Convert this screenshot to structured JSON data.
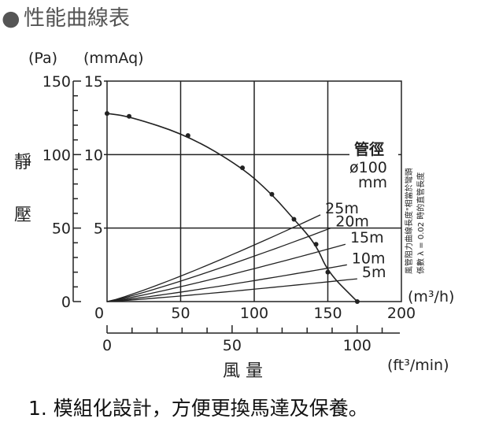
{
  "header": {
    "bullet": "●",
    "title": "性能曲線表"
  },
  "chart_data": {
    "type": "line",
    "y_unit_left": "(Pa)",
    "y_unit_right": "(mmAq)",
    "ylabel_chars": [
      "靜",
      "壓"
    ],
    "xlabel": "風 量",
    "x_unit_top": "(m³/h)",
    "x_unit_bottom": "(ft³/min)",
    "ylim_pa": [
      0,
      150
    ],
    "ylim_mmaq": [
      0,
      15
    ],
    "xlim_m3h": [
      0,
      200
    ],
    "xlim_cfm": [
      0,
      100
    ],
    "y_ticks_pa": [
      "0",
      "50",
      "100",
      "150"
    ],
    "y_ticks_mmaq": [
      "5",
      "10",
      "15"
    ],
    "x_ticks_m3h": [
      "0",
      "50",
      "100",
      "150",
      "200"
    ],
    "x_ticks_cfm": [
      "0",
      "50",
      "100"
    ],
    "performance_curve": {
      "x": [
        0,
        15,
        55,
        92,
        112,
        127,
        142,
        150,
        170
      ],
      "y": [
        12.8,
        12.6,
        11.3,
        9.1,
        7.3,
        5.6,
        3.9,
        2.0,
        0
      ]
    },
    "duct_label": "管徑",
    "duct_diameter": "ø100",
    "duct_unit": "mm",
    "duct_lines": [
      {
        "name": "25m",
        "end": [
          145,
          5.9
        ]
      },
      {
        "name": "20m",
        "end": [
          152,
          5.0
        ]
      },
      {
        "name": "15m",
        "end": [
          162,
          3.9
        ]
      },
      {
        "name": "10m",
        "end": [
          163,
          2.5
        ]
      },
      {
        "name": "5m",
        "end": [
          170,
          1.55
        ]
      }
    ],
    "side_note": [
      "風管阻力曲線長度\"相當於彎頭",
      "係數 λ = 0.02 時的直管長度"
    ],
    "grid": true
  },
  "caption": "1. 模組化設計，方便更換馬達及保養。"
}
